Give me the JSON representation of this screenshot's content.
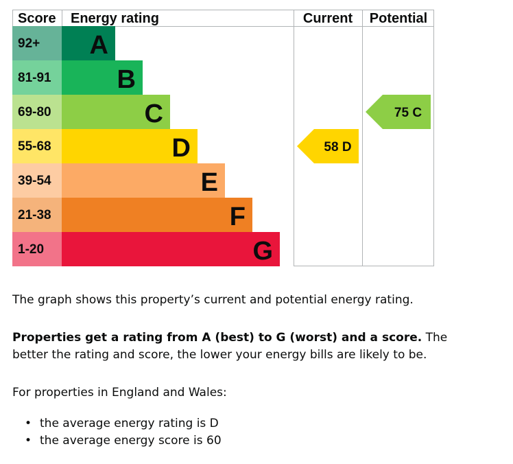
{
  "chart_data": {
    "type": "bar",
    "headers": {
      "score": "Score",
      "rating": "Energy rating",
      "current": "Current",
      "potential": "Potential"
    },
    "bands": [
      {
        "letter": "A",
        "range": "92+",
        "color": "#008054",
        "score_color": "#66b398"
      },
      {
        "letter": "B",
        "range": "81-91",
        "color": "#19b459",
        "score_color": "#75d29b"
      },
      {
        "letter": "C",
        "range": "69-80",
        "color": "#8dce46",
        "score_color": "#bbe290"
      },
      {
        "letter": "D",
        "range": "55-68",
        "color": "#ffd500",
        "score_color": "#ffe566"
      },
      {
        "letter": "E",
        "range": "39-54",
        "color": "#fcaa65",
        "score_color": "#fdcca3"
      },
      {
        "letter": "F",
        "range": "21-38",
        "color": "#ef8023",
        "score_color": "#f5b37b"
      },
      {
        "letter": "G",
        "range": "1-20",
        "color": "#e9153b",
        "score_color": "#f27389"
      }
    ],
    "current": {
      "score": 58,
      "letter": "D",
      "label": "58  D",
      "color": "#ffd500"
    },
    "potential": {
      "score": 75,
      "letter": "C",
      "label": "75  C",
      "color": "#8dce46"
    }
  },
  "text": {
    "intro": "The graph shows this property’s current and potential energy rating.",
    "explain_bold": "Properties get a rating from A (best) to G (worst) and a score.",
    "explain_rest": " The better the rating and score, the lower your energy bills are likely to be.",
    "avg_intro": "For properties in England and Wales:",
    "avg_items": [
      "the average energy rating is D",
      "the average energy score is 60"
    ]
  }
}
